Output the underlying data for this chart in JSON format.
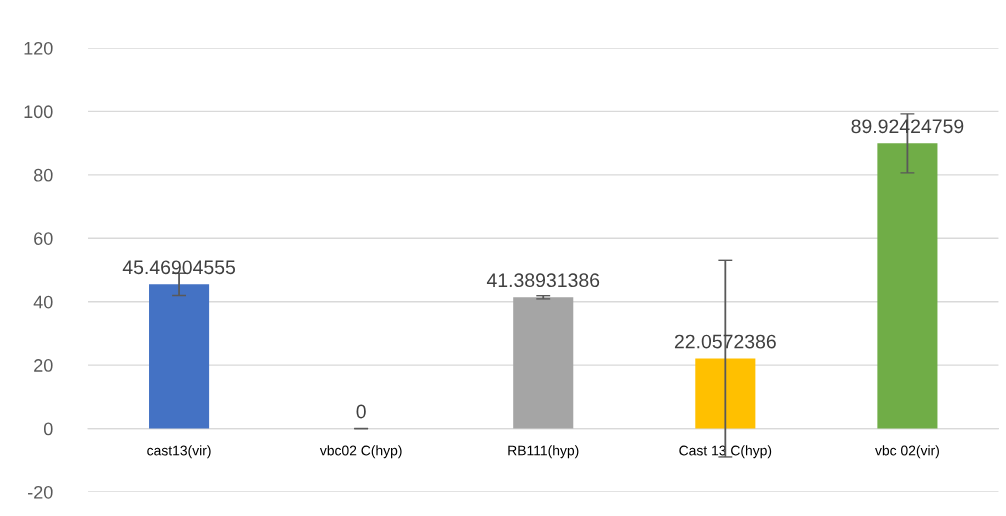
{
  "chart_data": {
    "type": "bar",
    "categories": [
      "cast13(vir)",
      "vbc02 C(hyp)",
      "RB111(hyp)",
      "Cast 13 C(hyp)",
      "vbc 02(vir)"
    ],
    "values": [
      45.46904555,
      0,
      41.38931386,
      22.0572386,
      89.92424759
    ],
    "colors": [
      "#4472c4",
      "#ed7d31",
      "#a5a5a5",
      "#ffc000",
      "#70ad47"
    ],
    "errors": [
      3.5,
      0,
      0.5,
      31,
      9.3
    ],
    "ylim": [
      -20,
      120
    ],
    "yticks": [
      -20,
      0,
      20,
      40,
      60,
      80,
      100,
      120
    ],
    "grid": "y",
    "data_labels": true
  }
}
